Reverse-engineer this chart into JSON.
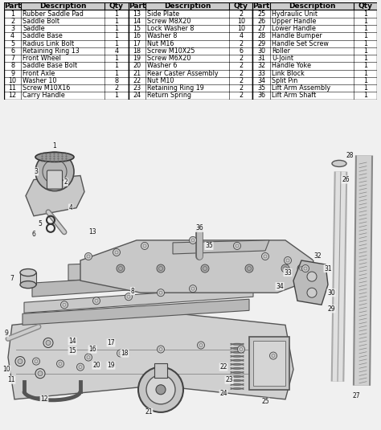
{
  "bg_color": "#f0f0f0",
  "table_bg": "#ffffff",
  "header_bg": "#cccccc",
  "parts": [
    {
      "part": 1,
      "desc": "Rubber Saddle Pad",
      "qty": "1"
    },
    {
      "part": 2,
      "desc": "Saddle Bolt",
      "qty": "1"
    },
    {
      "part": 3,
      "desc": "Saddle",
      "qty": "1"
    },
    {
      "part": 4,
      "desc": "Saddle Base",
      "qty": "1"
    },
    {
      "part": 5,
      "desc": "Radius Link Bolt",
      "qty": "1"
    },
    {
      "part": 6,
      "desc": "Retaining Ring 13",
      "qty": "4"
    },
    {
      "part": 7,
      "desc": "Front Wheel",
      "qty": "1"
    },
    {
      "part": 8,
      "desc": "Saddle Base Bolt",
      "qty": "1"
    },
    {
      "part": 9,
      "desc": "Front Axle",
      "qty": "1"
    },
    {
      "part": 10,
      "desc": "Washer 10",
      "qty": "8"
    },
    {
      "part": 11,
      "desc": "Screw M10X16",
      "qty": "2"
    },
    {
      "part": 12,
      "desc": "Carry Handle",
      "qty": "1"
    },
    {
      "part": 13,
      "desc": "Side Plate",
      "qty": "2"
    },
    {
      "part": 14,
      "desc": "Screw M8X20",
      "qty": "10"
    },
    {
      "part": 15,
      "desc": "Lock Washer 8",
      "qty": "10"
    },
    {
      "part": 16,
      "desc": "Washer 8",
      "qty": "4"
    },
    {
      "part": 17,
      "desc": "Nut M16",
      "qty": "2"
    },
    {
      "part": 18,
      "desc": "Screw M10X25",
      "qty": "6"
    },
    {
      "part": 19,
      "desc": "Screw M6X20",
      "qty": "2"
    },
    {
      "part": 20,
      "desc": "Washer 6",
      "qty": "2"
    },
    {
      "part": 21,
      "desc": "Rear Caster Assembly",
      "qty": "2"
    },
    {
      "part": 22,
      "desc": "Nut M10",
      "qty": "2"
    },
    {
      "part": 23,
      "desc": "Retaining Ring 19",
      "qty": "2"
    },
    {
      "part": 24,
      "desc": "Return Spring",
      "qty": "2"
    },
    {
      "part": 25,
      "desc": "Hydraulic Unit",
      "qty": "1"
    },
    {
      "part": 26,
      "desc": "Upper Handle",
      "qty": "1"
    },
    {
      "part": 27,
      "desc": "Lower Handle",
      "qty": "1"
    },
    {
      "part": 28,
      "desc": "Handle Bumper",
      "qty": "1"
    },
    {
      "part": 29,
      "desc": "Handle Set Screw",
      "qty": "1"
    },
    {
      "part": 30,
      "desc": "Roller",
      "qty": "1"
    },
    {
      "part": 31,
      "desc": "U-Joint",
      "qty": "1"
    },
    {
      "part": 32,
      "desc": "Handle Yoke",
      "qty": "1"
    },
    {
      "part": 33,
      "desc": "Link Block",
      "qty": "1"
    },
    {
      "part": 34,
      "desc": "Split Pin",
      "qty": "1"
    },
    {
      "part": 35,
      "desc": "Lift Arm Assembly",
      "qty": "1"
    },
    {
      "part": 36,
      "desc": "Lift Arm Shaft",
      "qty": "1"
    }
  ],
  "font_size_header": 6.5,
  "font_size_data": 5.8
}
